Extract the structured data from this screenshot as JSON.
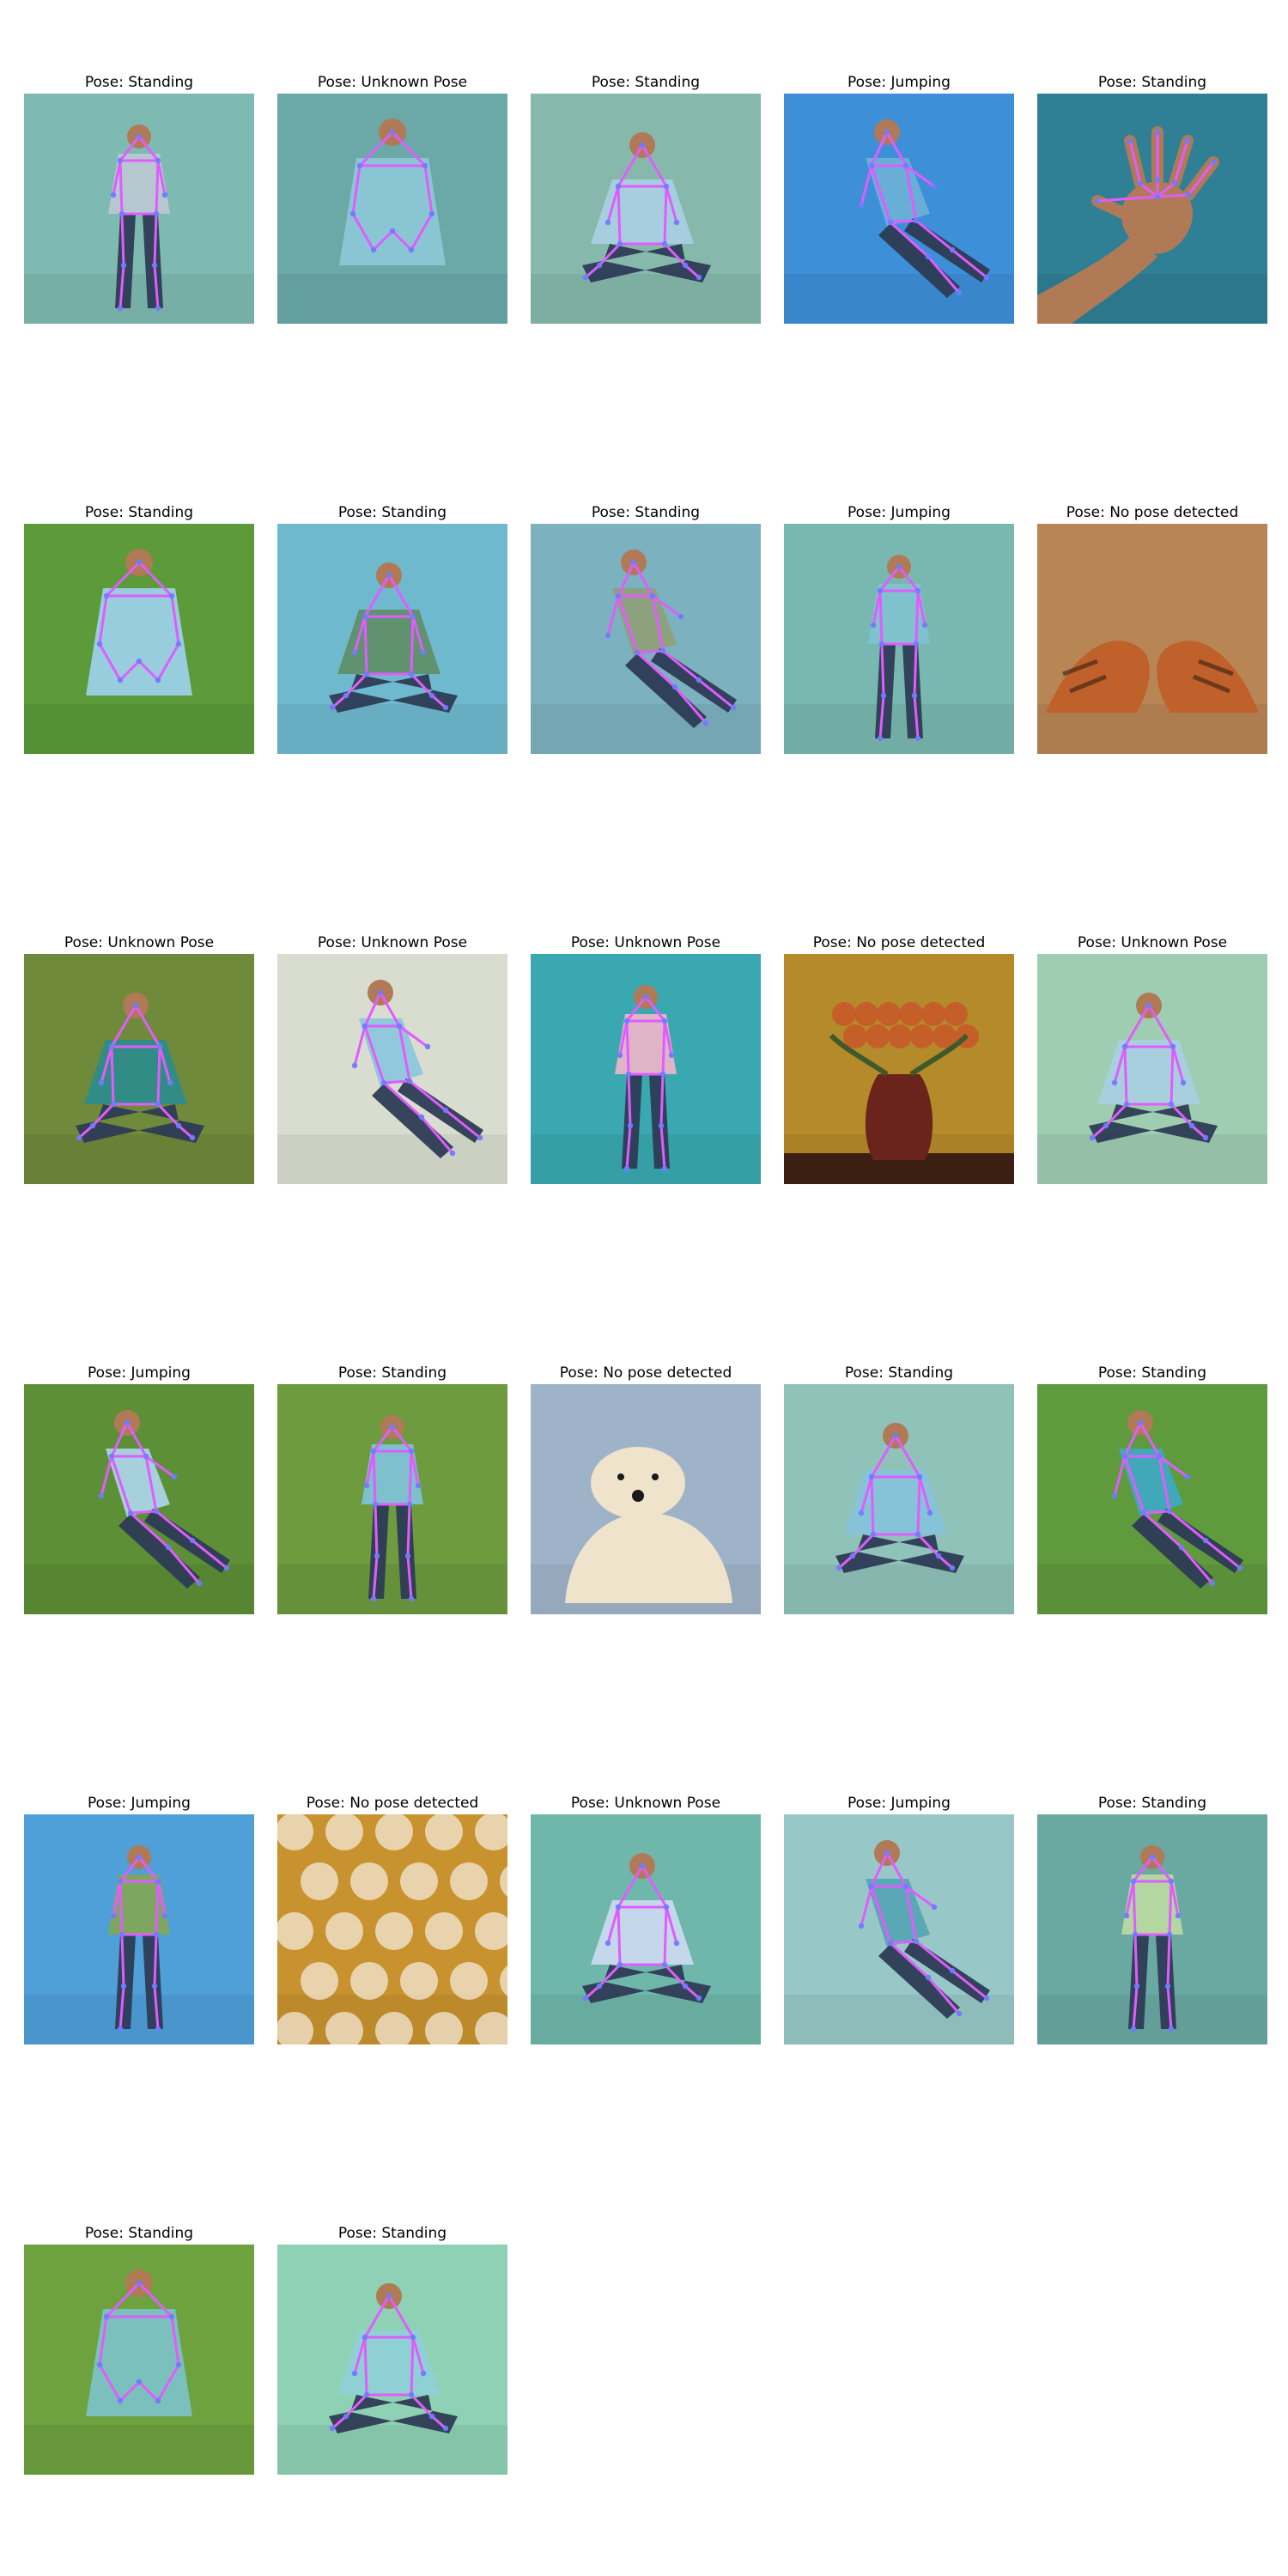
{
  "panels": [
    {
      "caption": "Pose: Standing",
      "scene": "woman-standing-front",
      "skeleton": true,
      "bg": "#7fbab2",
      "fg": "#b9c7d2"
    },
    {
      "caption": "Pose: Unknown Pose",
      "scene": "man-sitting-couch-hands-clasped",
      "skeleton": true,
      "bg": "#6aa9a8",
      "fg": "#8cc6d6"
    },
    {
      "caption": "Pose: Standing",
      "scene": "woman-on-phone",
      "skeleton": true,
      "bg": "#86b9ac",
      "fg": "#a9cfe0"
    },
    {
      "caption": "Pose: Jumping",
      "scene": "woman-jumping-desert",
      "skeleton": true,
      "bg": "#3d8fd8",
      "fg": "#6ab0d6"
    },
    {
      "caption": "Pose: Standing",
      "scene": "raised-hand",
      "skeleton": true,
      "bg": "#2f7f95",
      "fg": "#b07a57"
    },
    {
      "caption": "Pose: Standing",
      "scene": "two-people-running-grass",
      "skeleton": true,
      "bg": "#5c9a3a",
      "fg": "#9ad0e6"
    },
    {
      "caption": "Pose: Standing",
      "scene": "four-men-standing",
      "skeleton": true,
      "bg": "#6fb9cf",
      "fg": "#5f8f6a"
    },
    {
      "caption": "Pose: Standing",
      "scene": "woman-standing-jeans",
      "skeleton": true,
      "bg": "#7cb1c0",
      "fg": "#8fa07a"
    },
    {
      "caption": "Pose: Jumping",
      "scene": "woman-sitting-cross-legged",
      "skeleton": true,
      "bg": "#79b8b0",
      "fg": "#7fc2cf"
    },
    {
      "caption": "Pose: No pose detected",
      "scene": "two-tigers",
      "skeleton": false,
      "bg": "#b88554",
      "fg": "#c0602a"
    },
    {
      "caption": "Pose: Unknown Pose",
      "scene": "group-of-people",
      "skeleton": true,
      "bg": "#6f8a3a",
      "fg": "#2e8c8a"
    },
    {
      "caption": "Pose: Unknown Pose",
      "scene": "man-sitting-cross-legged",
      "skeleton": true,
      "bg": "#d9ddcf",
      "fg": "#8cc6dc"
    },
    {
      "caption": "Pose: Unknown Pose",
      "scene": "dancer-and-singer",
      "skeleton": true,
      "bg": "#3aa8b0",
      "fg": "#e8b4c8"
    },
    {
      "caption": "Pose: No pose detected",
      "scene": "vase-of-roses",
      "skeleton": false,
      "bg": "#b58a2a",
      "fg": "#6a241c"
    },
    {
      "caption": "Pose: Unknown Pose",
      "scene": "man-lunging-yoga",
      "skeleton": true,
      "bg": "#9fcdb2",
      "fg": "#a9cfe0"
    },
    {
      "caption": "Pose: Jumping",
      "scene": "man-bending-grass",
      "skeleton": true,
      "bg": "#5d8f36",
      "fg": "#a9d4e6"
    },
    {
      "caption": "Pose: Standing",
      "scene": "man-plank-hill",
      "skeleton": true,
      "bg": "#6d9b3e",
      "fg": "#80c2d6"
    },
    {
      "caption": "Pose: No pose detected",
      "scene": "polar-bear",
      "skeleton": false,
      "bg": "#9fb3c8",
      "fg": "#efe3cb"
    },
    {
      "caption": "Pose: Standing",
      "scene": "man-lying-bed",
      "skeleton": true,
      "bg": "#8fc2b8",
      "fg": "#86c3d9"
    },
    {
      "caption": "Pose: Standing",
      "scene": "man-running-field",
      "skeleton": true,
      "bg": "#5f9a3d",
      "fg": "#3ea9bf"
    },
    {
      "caption": "Pose: Jumping",
      "scene": "man-jumping-sky",
      "skeleton": true,
      "bg": "#4f9fd8",
      "fg": "#7fa85a"
    },
    {
      "caption": "Pose: No pose detected",
      "scene": "abstract-pattern",
      "skeleton": false,
      "bg": "#c8922e",
      "fg": "#f3e8d7"
    },
    {
      "caption": "Pose: Unknown Pose",
      "scene": "woman-yoga-arms-up",
      "skeleton": true,
      "bg": "#6fb7ab",
      "fg": "#c9d8ee"
    },
    {
      "caption": "Pose: Jumping",
      "scene": "man-kneeling-floor",
      "skeleton": true,
      "bg": "#97c8c7",
      "fg": "#56a6b4"
    },
    {
      "caption": "Pose: Standing",
      "scene": "couple-hugging",
      "skeleton": true,
      "bg": "#6aa8a2",
      "fg": "#b8d8a0"
    },
    {
      "caption": "Pose: Standing",
      "scene": "man-walking-path",
      "skeleton": true,
      "bg": "#6da23f",
      "fg": "#7cc2c4"
    },
    {
      "caption": "Pose: Standing",
      "scene": "man-sleeping-pillow",
      "skeleton": true,
      "bg": "#8fd1b4",
      "fg": "#8fd0d6"
    }
  ],
  "style": {
    "skeleton_color": "#e15cff",
    "joint_color": "#6f7bff"
  }
}
